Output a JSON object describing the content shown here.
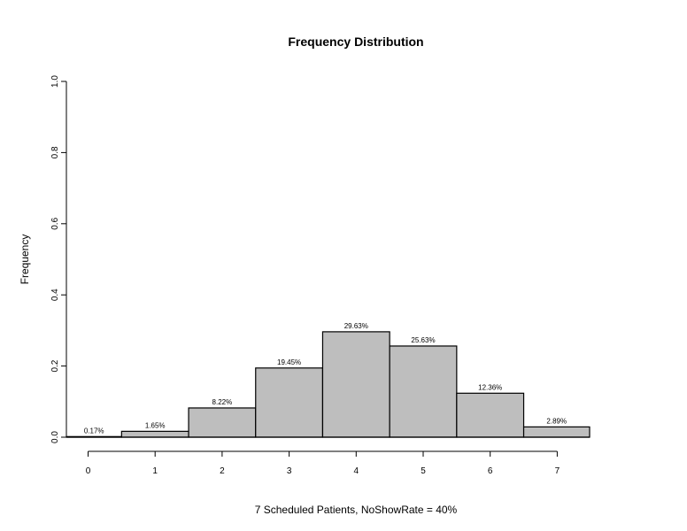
{
  "chart_data": {
    "type": "bar",
    "title": "Frequency Distribution",
    "xlabel": "7 Scheduled Patients,  NoShowRate = 40%",
    "ylabel": "Frequency",
    "categories": [
      "0",
      "1",
      "2",
      "3",
      "4",
      "5",
      "6",
      "7"
    ],
    "values": [
      0.0017,
      0.0165,
      0.0822,
      0.1945,
      0.2963,
      0.2563,
      0.1236,
      0.0289
    ],
    "data_labels": [
      "0.17%",
      "1.65%",
      "8.22%",
      "19.45%",
      "29.63%",
      "25.63%",
      "12.36%",
      "2.89%"
    ],
    "ylim": [
      0,
      1.0
    ],
    "yticks": [
      "0.0",
      "0.2",
      "0.4",
      "0.6",
      "0.8",
      "1.0"
    ],
    "grid": false,
    "bar_color": "#bebebe",
    "edge_color": "#000000"
  }
}
